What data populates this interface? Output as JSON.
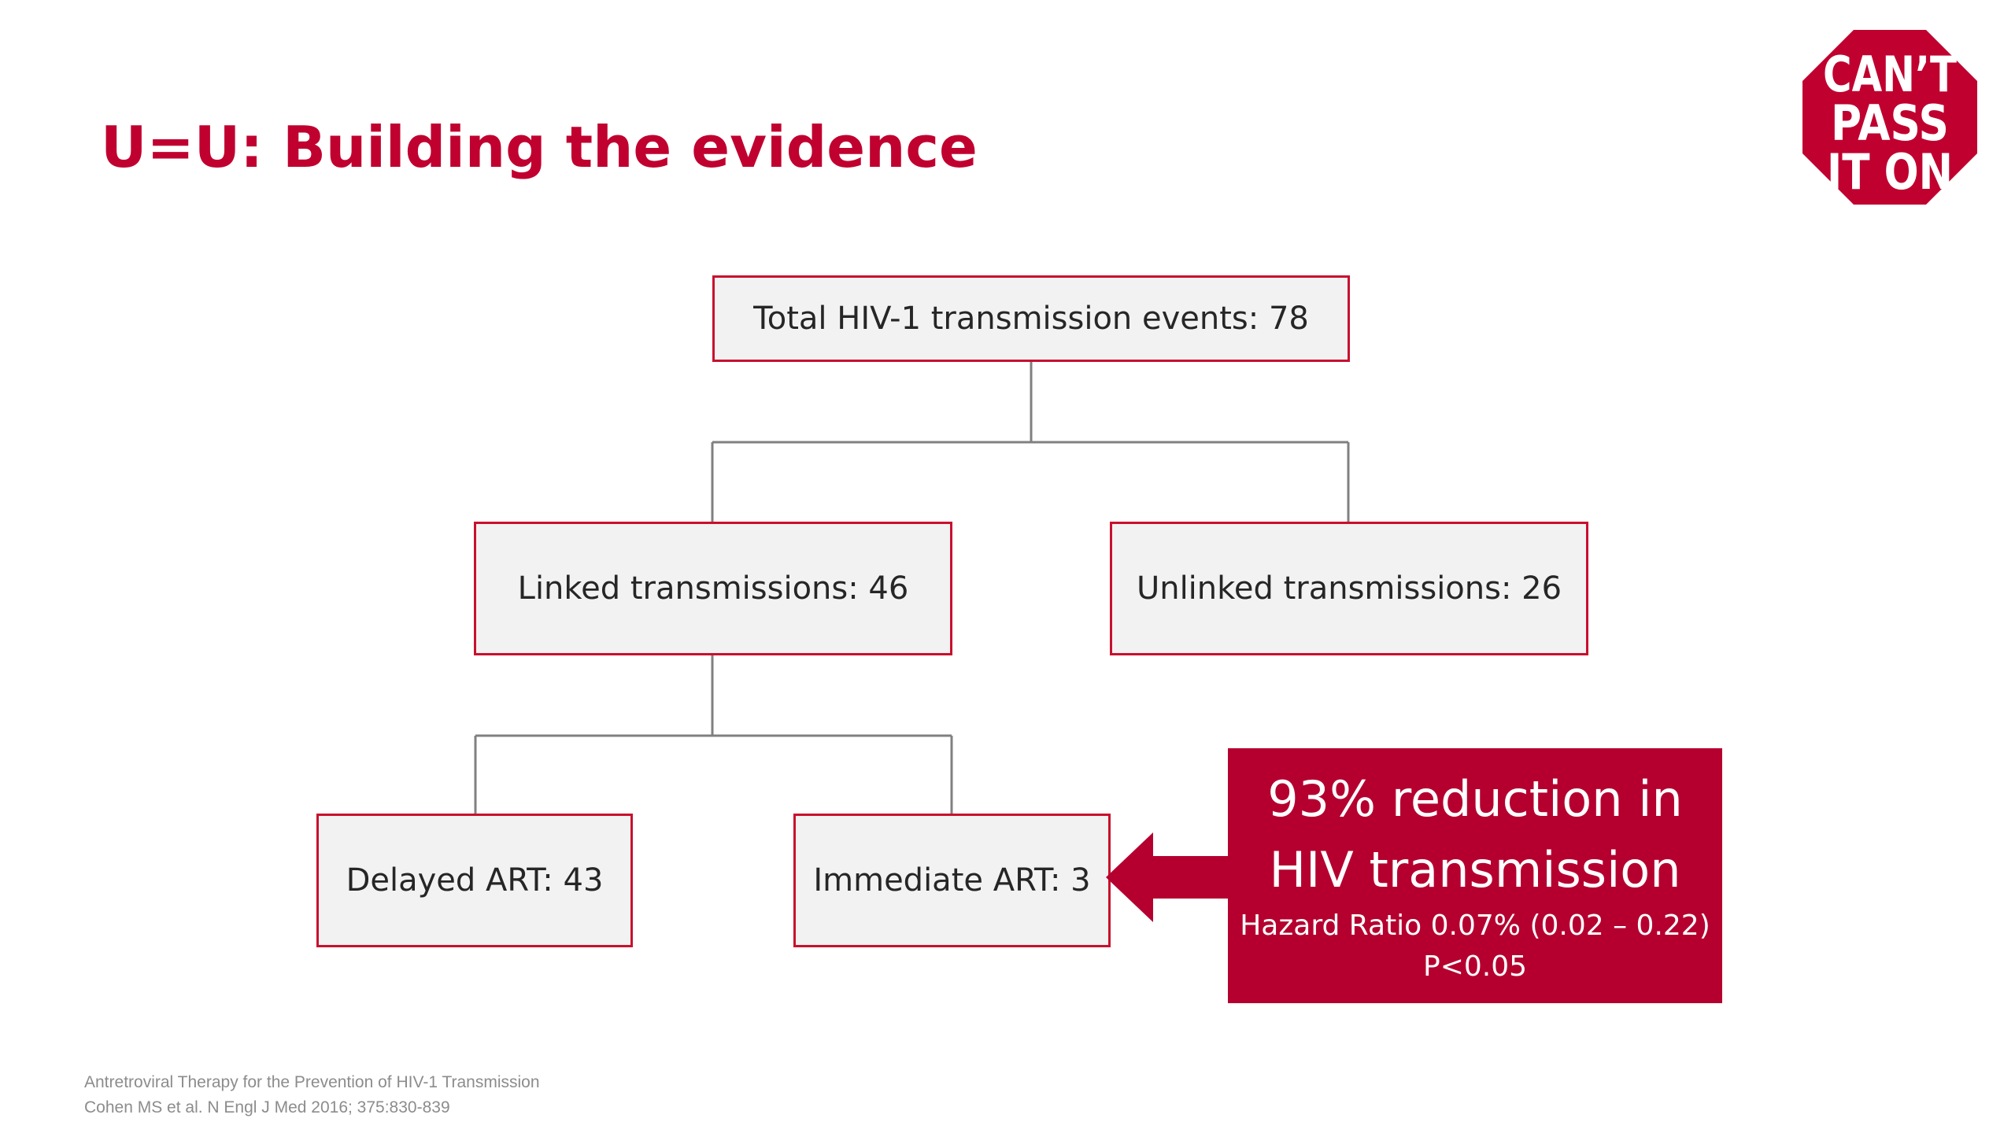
{
  "slide": {
    "title": "U=U: Building the evidence"
  },
  "logo": {
    "lines": [
      "CAN’T",
      "PASS",
      "IT ON"
    ],
    "color": "#c0002f"
  },
  "flowchart": {
    "total": "Total HIV-1 transmission events: 78",
    "linked": "Linked transmissions: 46",
    "unlinked": "Unlinked transmissions: 26",
    "delayed": "Delayed ART: 43",
    "immediate": "Immediate ART: 3"
  },
  "callout": {
    "line1": "93% reduction in",
    "line2": "HIV transmission",
    "hazard": "Hazard Ratio 0.07% (0.02 – 0.22)",
    "pvalue": "P<0.05"
  },
  "references": {
    "line1": "Antretroviral Therapy for the Prevention of HIV-1 Transmission",
    "line2": "Cohen MS et al. N Engl J Med 2016; 375:830-839"
  },
  "colors": {
    "accent": "#c0002f",
    "box_border": "#c8102e",
    "box_fill": "#f2f2f2",
    "connector": "#808080"
  }
}
